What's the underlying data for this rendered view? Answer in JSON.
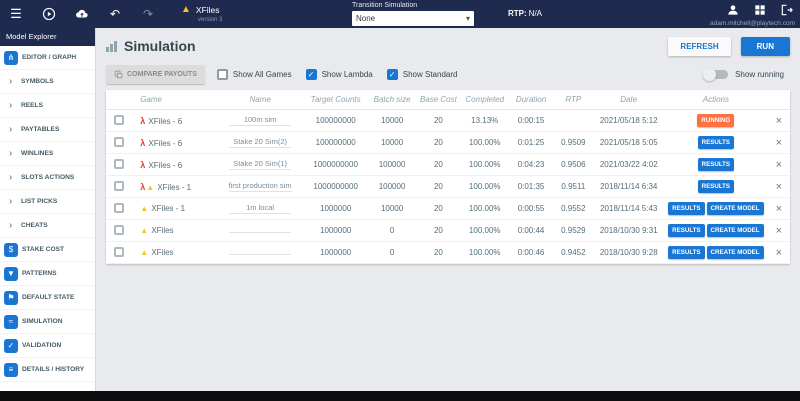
{
  "colors": {
    "topbar_bg": "#1f2b4e",
    "accent_blue": "#1976d2",
    "running_orange": "#ff7043",
    "warning_yellow": "#fbc02d",
    "lambda_red": "#e53935"
  },
  "icons": {
    "menu": "☰",
    "undo": "↶",
    "redo": "↷",
    "warning": "▲",
    "lambda": "λ",
    "close": "×",
    "caret_down": "▾",
    "check": "✓",
    "chevron_right": "›"
  },
  "topbar": {
    "model_name": "XFiles",
    "version": "version 3",
    "transition_label": "Transition Simulation",
    "transition_value": "None",
    "rtp_label": "RTP:",
    "rtp_value": "N/A",
    "user_email": "adam.mitchell@playtech.com"
  },
  "sidebar": {
    "title": "Model Explorer",
    "items": [
      {
        "label": "EDITOR / GRAPH",
        "icon": "graph-icon",
        "glyph": "⋔"
      },
      {
        "label": "SYMBOLS",
        "icon": "chevron-right-icon"
      },
      {
        "label": "REELS",
        "icon": "chevron-right-icon"
      },
      {
        "label": "PAYTABLES",
        "icon": "chevron-right-icon"
      },
      {
        "label": "WINLINES",
        "icon": "chevron-right-icon"
      },
      {
        "label": "SLOTS ACTIONS",
        "icon": "chevron-right-icon"
      },
      {
        "label": "LIST PICKS",
        "icon": "chevron-right-icon"
      },
      {
        "label": "CHEATS",
        "icon": "chevron-right-icon"
      },
      {
        "label": "STAKE COST",
        "icon": "dollar-icon",
        "glyph": "$"
      },
      {
        "label": "PATTERNS",
        "icon": "funnel-icon",
        "glyph": "▼"
      },
      {
        "label": "DEFAULT STATE",
        "icon": "flag-icon",
        "glyph": "⚑"
      },
      {
        "label": "SIMULATION",
        "icon": "simulation-chart-icon",
        "glyph": "≈"
      },
      {
        "label": "VALIDATION",
        "icon": "check-icon",
        "glyph": "✓"
      },
      {
        "label": "DETAILS / HISTORY",
        "icon": "history-icon",
        "glyph": "≡"
      }
    ]
  },
  "main": {
    "title": "Simulation",
    "refresh_label": "REFRESH",
    "run_label": "RUN",
    "compare_payouts_label": "COMPARE PAYOUTS",
    "show_running_label": "Show running",
    "filters": [
      {
        "label": "Show All Games",
        "checked": false
      },
      {
        "label": "Show Lambda",
        "checked": true
      },
      {
        "label": "Show Standard",
        "checked": true
      }
    ],
    "table": {
      "headers": [
        "Game",
        "Name",
        "Target Counts",
        "Batch size",
        "Base Cost",
        "Completed",
        "Duration",
        "RTP",
        "Date",
        "Actions"
      ],
      "rows": [
        {
          "icons": [
            "lambda"
          ],
          "game": "XFiles - 6",
          "name": "100m sim",
          "target_counts": "100000000",
          "batch_size": "10000",
          "base_cost": "20",
          "completed": "13.13%",
          "duration": "0:00:15",
          "rtp": "",
          "date": "2021/05/18 5:12",
          "actions": [
            {
              "label": "RUNNING",
              "style": "running"
            }
          ]
        },
        {
          "icons": [
            "lambda"
          ],
          "game": "XFiles - 6",
          "name": "Stake 20 Sim(2)",
          "target_counts": "100000000",
          "batch_size": "10000",
          "base_cost": "20",
          "completed": "100.00%",
          "duration": "0:01:25",
          "rtp": "0.9509",
          "date": "2021/05/18 5:05",
          "actions": [
            {
              "label": "RESULTS",
              "style": "primary"
            }
          ]
        },
        {
          "icons": [
            "lambda"
          ],
          "game": "XFiles - 6",
          "name": "Stake 20 Sim(1)",
          "target_counts": "1000000000",
          "batch_size": "100000",
          "base_cost": "20",
          "completed": "100.00%",
          "duration": "0:04:23",
          "rtp": "0.9506",
          "date": "2021/03/22 4:02",
          "actions": [
            {
              "label": "RESULTS",
              "style": "primary"
            }
          ]
        },
        {
          "icons": [
            "lambda",
            "warning"
          ],
          "game": "XFiles - 1",
          "name": "first production sim",
          "target_counts": "1000000000",
          "batch_size": "100000",
          "base_cost": "20",
          "completed": "100.00%",
          "duration": "0:01:35",
          "rtp": "0.9511",
          "date": "2018/11/14 6:34",
          "actions": [
            {
              "label": "RESULTS",
              "style": "primary"
            }
          ]
        },
        {
          "icons": [
            "warning"
          ],
          "game": "XFiles - 1",
          "name": "1m local",
          "target_counts": "1000000",
          "batch_size": "10000",
          "base_cost": "20",
          "completed": "100.00%",
          "duration": "0:00:55",
          "rtp": "0.9552",
          "date": "2018/11/14 5:43",
          "actions": [
            {
              "label": "RESULTS",
              "style": "primary"
            },
            {
              "label": "CREATE MODEL",
              "style": "primary"
            }
          ]
        },
        {
          "icons": [
            "warning"
          ],
          "game": "XFiles",
          "name": "",
          "target_counts": "1000000",
          "batch_size": "0",
          "base_cost": "20",
          "completed": "100.00%",
          "duration": "0:00:44",
          "rtp": "0.9529",
          "date": "2018/10/30 9:31",
          "actions": [
            {
              "label": "RESULTS",
              "style": "primary"
            },
            {
              "label": "CREATE MODEL",
              "style": "primary"
            }
          ]
        },
        {
          "icons": [
            "warning"
          ],
          "game": "XFiles",
          "name": "",
          "target_counts": "1000000",
          "batch_size": "0",
          "base_cost": "20",
          "completed": "100.00%",
          "duration": "0:00:46",
          "rtp": "0.9452",
          "date": "2018/10/30 9:28",
          "actions": [
            {
              "label": "RESULTS",
              "style": "primary"
            },
            {
              "label": "CREATE MODEL",
              "style": "primary"
            }
          ]
        }
      ]
    }
  }
}
